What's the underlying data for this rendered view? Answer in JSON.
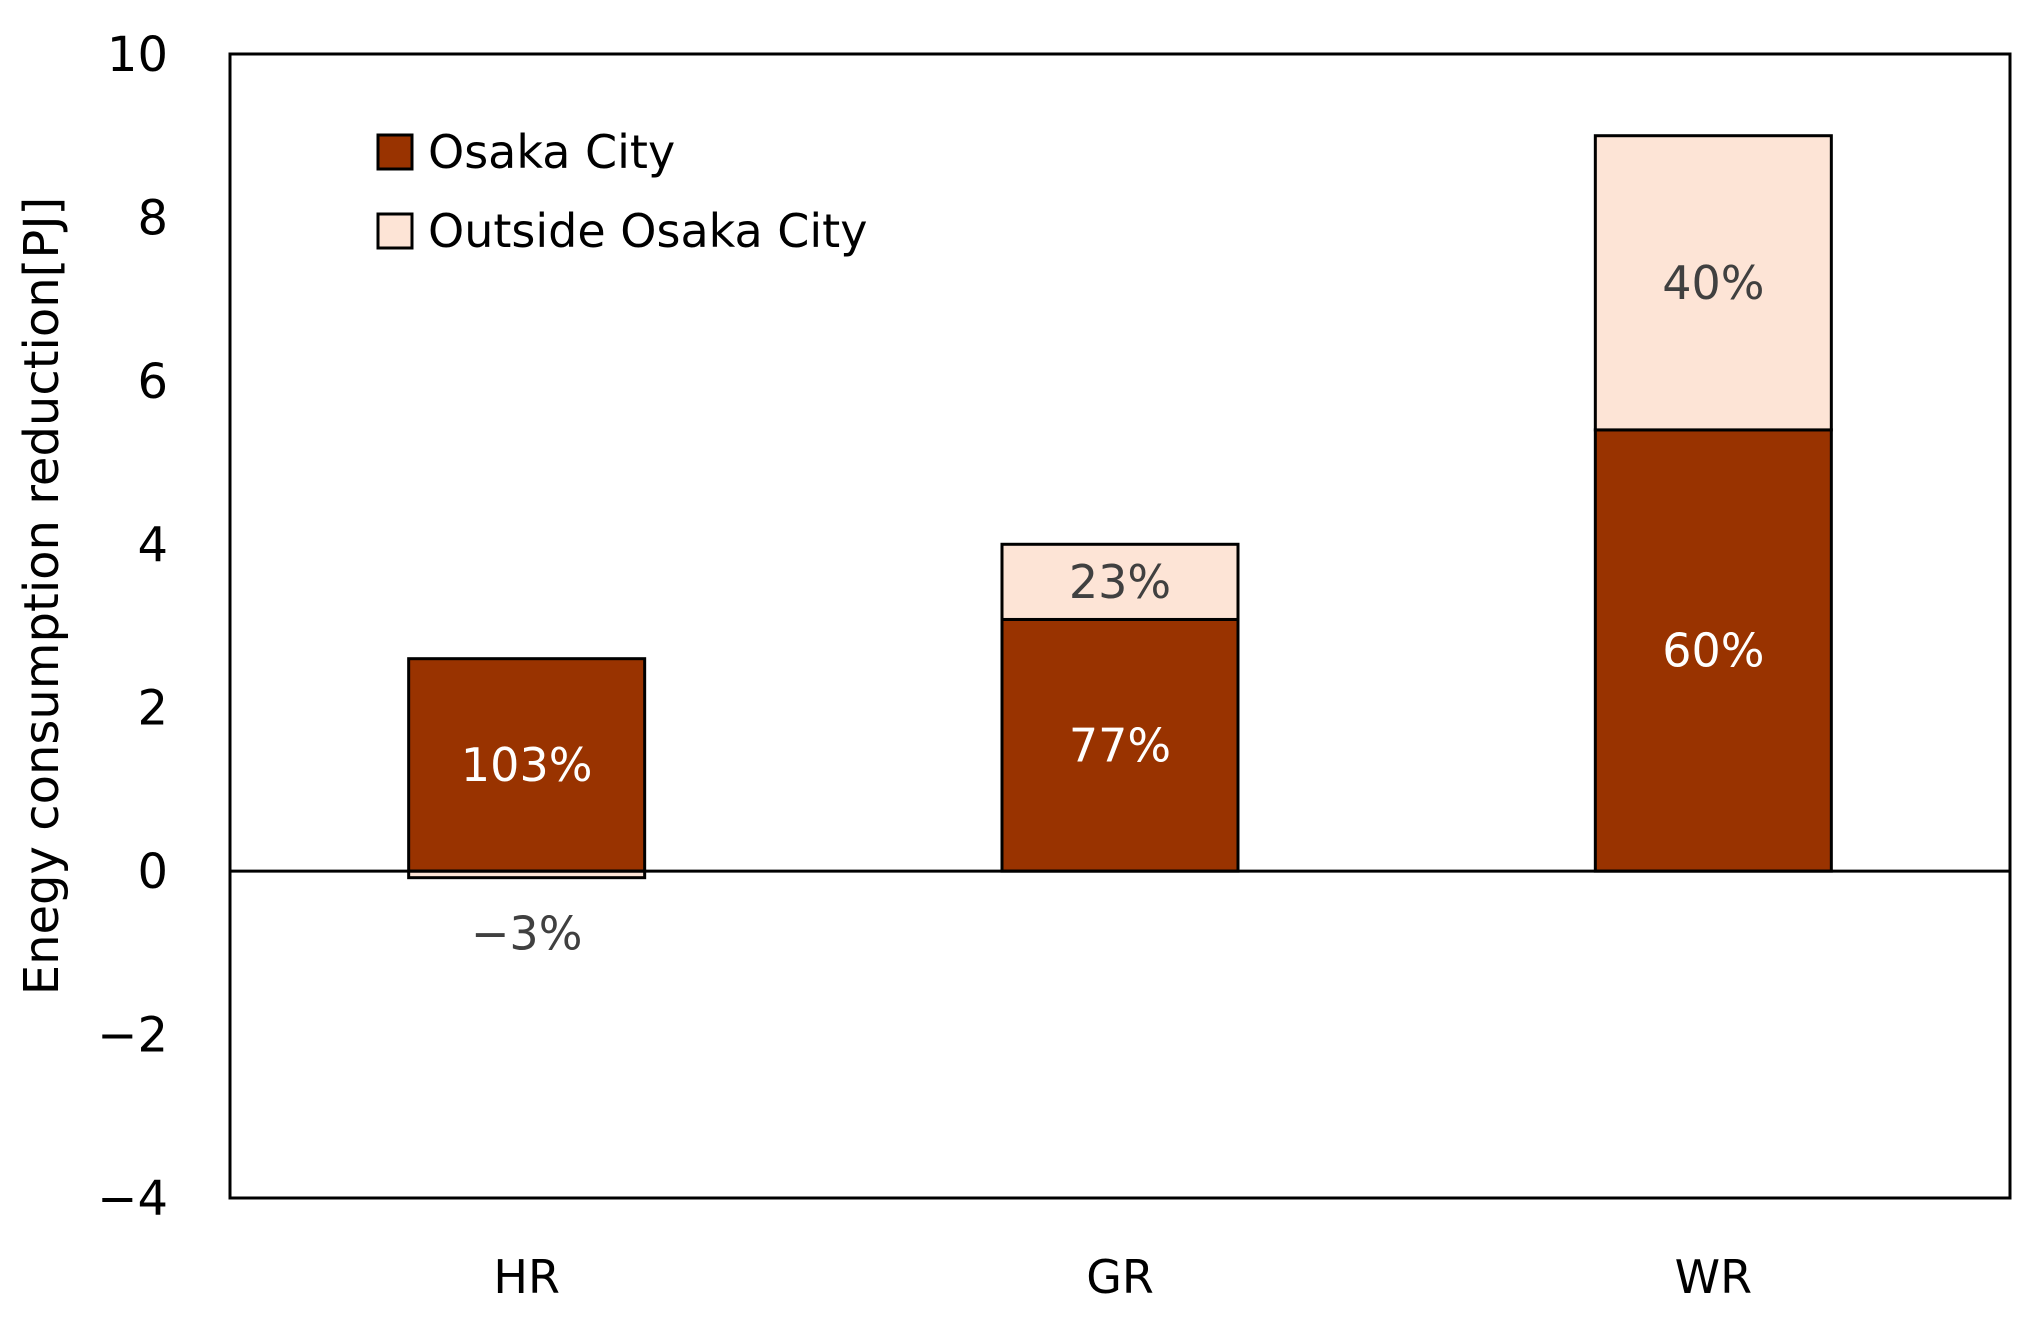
{
  "chart_data": {
    "type": "bar",
    "stacked": true,
    "title": "",
    "xlabel": "",
    "ylabel": "Enegy consumption reduction[PJ]",
    "ylim": [
      -4,
      10
    ],
    "yticks": [
      10,
      8,
      6,
      4,
      2,
      0,
      -2,
      -4
    ],
    "ytick_labels": [
      "10",
      "8",
      "6",
      "4",
      "2",
      "0",
      "−2",
      "−4"
    ],
    "grid": false,
    "legend_position": "top-left",
    "categories": [
      "HR",
      "GR",
      "WR"
    ],
    "series": [
      {
        "name": "Osaka City",
        "color": "#993300",
        "values": [
          2.6,
          3.08,
          5.4
        ],
        "labels": [
          "103%",
          "77%",
          "60%"
        ],
        "label_color": "#ffffff"
      },
      {
        "name": "Outside Osaka City",
        "color": "#fde4d6",
        "values": [
          -0.08,
          0.92,
          3.6
        ],
        "labels": [
          "−3%",
          "23%",
          "40%"
        ],
        "label_color": "#404040"
      }
    ]
  }
}
